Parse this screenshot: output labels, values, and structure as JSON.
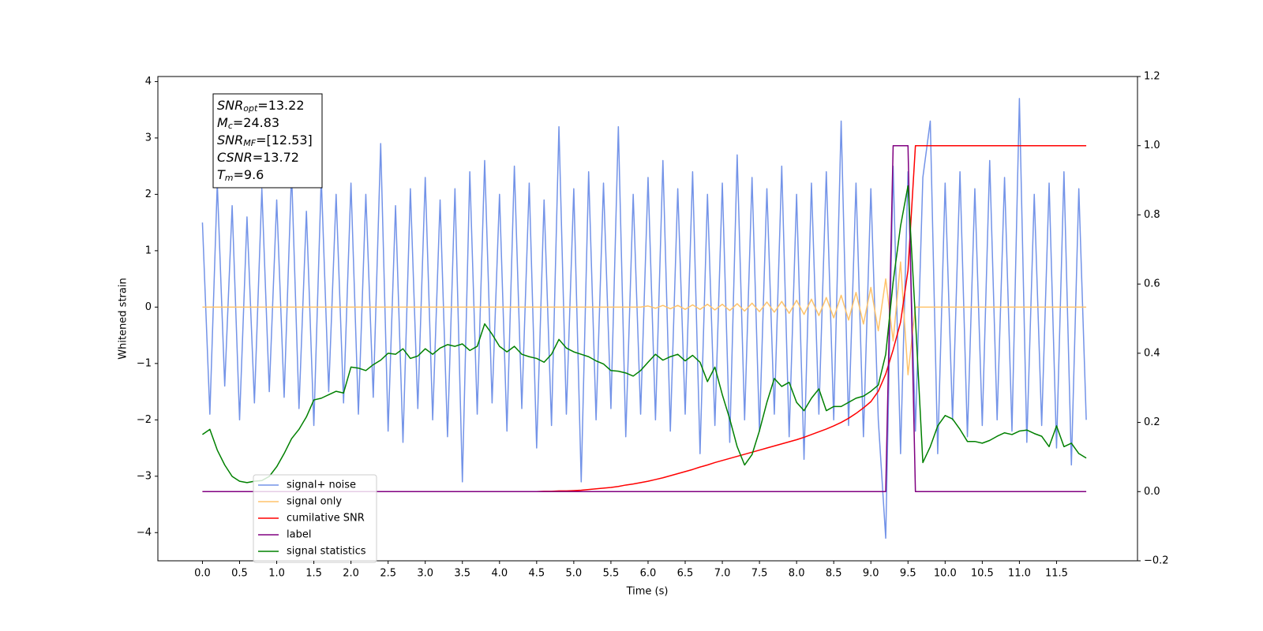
{
  "chart_data": {
    "type": "line",
    "xlabel": "Time (s)",
    "ylabel": "Whitened strain",
    "xlim": [
      -0.6,
      12.59
    ],
    "ylim": [
      -4.5,
      4.09
    ],
    "y2lim": [
      -0.2,
      1.2
    ],
    "xticks": [
      {
        "value": 0,
        "label": "0.0"
      },
      0.5,
      {
        "value": 1,
        "label": "1.0"
      },
      1.5,
      {
        "value": 2,
        "label": "2.0"
      },
      2.5,
      {
        "value": 3,
        "label": "3.0"
      },
      3.5,
      {
        "value": 4,
        "label": "4.0"
      },
      4.5,
      {
        "value": 5,
        "label": "5.0"
      },
      5.5,
      {
        "value": 6,
        "label": "6.0"
      },
      6.5,
      {
        "value": 7,
        "label": "7.0"
      },
      7.5,
      {
        "value": 8,
        "label": "8.0"
      },
      8.5,
      {
        "value": 9,
        "label": "9.0"
      },
      9.5,
      {
        "value": 10,
        "label": "10.0"
      },
      10.5,
      {
        "value": 11,
        "label": "11.0"
      },
      11.5
    ],
    "yticks": [
      {
        "value": -4,
        "label": "−4"
      },
      {
        "value": -3,
        "label": "−3"
      },
      {
        "value": -2,
        "label": "−2"
      },
      {
        "value": -1,
        "label": "−1"
      },
      0,
      1,
      2,
      3,
      4
    ],
    "y2ticks": [
      {
        "value": -0.2,
        "label": "−0.2"
      },
      {
        "value": 0,
        "label": "0.0"
      },
      0.2,
      0.4,
      0.6,
      0.8,
      {
        "value": 1,
        "label": "1.0"
      },
      1.2
    ],
    "legend_loc": "lower left",
    "annotation": [
      {
        "symbol": "SNR",
        "subscript": "opt",
        "text": "=13.22"
      },
      {
        "symbol": "M",
        "subscript": "c",
        "text": "=24.83"
      },
      {
        "symbol": "SNR",
        "subscript": "MF",
        "text": "=[12.53]"
      },
      {
        "symbol": "CSNR",
        "text": "=13.72"
      },
      {
        "symbol": "T",
        "subscript": "m",
        "text": "=9.6"
      }
    ],
    "x": [
      0,
      0.1,
      0.2,
      0.3,
      0.4,
      0.5,
      0.6,
      0.7,
      0.8,
      0.9,
      1,
      1.1,
      1.2,
      1.3,
      1.4,
      1.5,
      1.6,
      1.7,
      1.8,
      1.9,
      2,
      2.1,
      2.2,
      2.3,
      2.4,
      2.5,
      2.6,
      2.7,
      2.8,
      2.9,
      3,
      3.1,
      3.2,
      3.3,
      3.4,
      3.5,
      3.6,
      3.7,
      3.8,
      3.9,
      4,
      4.1,
      4.2,
      4.3,
      4.4,
      4.5,
      4.6,
      4.7,
      4.8,
      4.9,
      5,
      5.1,
      5.2,
      5.3,
      5.4,
      5.5,
      5.6,
      5.7,
      5.8,
      5.9,
      6,
      6.1,
      6.2,
      6.3,
      6.4,
      6.5,
      6.6,
      6.7,
      6.8,
      6.9,
      7,
      7.1,
      7.2,
      7.3,
      7.4,
      7.5,
      7.6,
      7.7,
      7.8,
      7.9,
      8,
      8.1,
      8.2,
      8.3,
      8.4,
      8.5,
      8.6,
      8.7,
      8.8,
      8.9,
      9,
      9.1,
      9.2,
      9.3,
      9.4,
      9.5,
      9.6,
      9.7,
      9.8,
      9.9,
      10,
      10.1,
      10.2,
      10.3,
      10.4,
      10.5,
      10.6,
      10.7,
      10.8,
      10.9,
      11,
      11.1,
      11.2,
      11.3,
      11.4,
      11.5,
      11.6,
      11.7,
      11.8,
      11.9
    ],
    "series": [
      {
        "name": "signal+ noise",
        "color": "#7393e8",
        "values": [
          1.5,
          -1.9,
          2.2,
          -1.4,
          1.8,
          -2.0,
          1.6,
          -1.7,
          2.1,
          -1.5,
          1.9,
          -1.6,
          2.4,
          -1.8,
          1.7,
          -2.1,
          2.3,
          -1.5,
          2.0,
          -1.7,
          2.2,
          -1.9,
          2.0,
          -1.6,
          2.9,
          -2.2,
          1.8,
          -2.4,
          2.1,
          -1.8,
          2.3,
          -2.0,
          1.9,
          -2.3,
          2.1,
          -3.1,
          2.4,
          -1.9,
          2.6,
          -1.7,
          2.0,
          -2.2,
          2.5,
          -1.8,
          2.2,
          -2.5,
          1.9,
          -2.1,
          3.2,
          -1.9,
          2.1,
          -3.1,
          2.4,
          -2.0,
          2.2,
          -1.8,
          3.2,
          -2.3,
          2.0,
          -1.9,
          2.3,
          -2.0,
          2.6,
          -2.2,
          2.1,
          -1.9,
          2.4,
          -2.6,
          2.0,
          -2.1,
          2.2,
          -2.4,
          2.7,
          -2.0,
          2.3,
          -2.2,
          2.1,
          -1.9,
          2.5,
          -2.3,
          2.0,
          -2.7,
          2.2,
          -1.9,
          2.4,
          -2.0,
          3.3,
          -2.1,
          2.2,
          -2.3,
          2.1,
          -2.0,
          -4.1,
          2.5,
          -2.6,
          2.4,
          -2.2,
          2.3,
          3.3,
          -2.6,
          2.2,
          -2.0,
          2.4,
          -2.3,
          2.1,
          -2.1,
          2.6,
          -2.0,
          2.3,
          -2.2,
          3.7,
          -2.4,
          2.0,
          -2.1,
          2.2,
          -2.5,
          2.4,
          -2.8,
          2.1,
          -2.0
        ]
      },
      {
        "name": "signal only",
        "color": "#ffc36b",
        "values": [
          0,
          0,
          0,
          0,
          0,
          0,
          0,
          0,
          0,
          0,
          0,
          0,
          0,
          0,
          0,
          0,
          0,
          0,
          0,
          0,
          0,
          0,
          0,
          0,
          0,
          0,
          0,
          0,
          0,
          0,
          0,
          0,
          0,
          0,
          0,
          0,
          0,
          0,
          0,
          0,
          0,
          0,
          0,
          0,
          0,
          0,
          0,
          0,
          0,
          0,
          0,
          0,
          0,
          0,
          0,
          0,
          0,
          0,
          0,
          0,
          0.02,
          -0.02,
          0.03,
          -0.03,
          0.03,
          -0.04,
          0.04,
          -0.04,
          0.05,
          -0.05,
          0.05,
          -0.06,
          0.06,
          -0.07,
          0.07,
          -0.08,
          0.09,
          -0.09,
          0.1,
          -0.11,
          0.12,
          -0.13,
          0.14,
          -0.15,
          0.17,
          -0.19,
          0.21,
          -0.23,
          0.26,
          -0.3,
          0.35,
          -0.42,
          0.5,
          -0.6,
          0.8,
          -1.2,
          0,
          0,
          0,
          0,
          0,
          0,
          0,
          0,
          0,
          0,
          0,
          0,
          0,
          0,
          0,
          0,
          0,
          0,
          0,
          0,
          0,
          0,
          0,
          0
        ]
      },
      {
        "name": "cumilative SNR",
        "color": "#ff0000",
        "axis": "y2",
        "values": [
          0,
          0,
          0,
          0,
          0,
          0,
          0,
          0,
          0,
          0,
          0,
          0,
          0,
          0,
          0,
          0,
          0,
          0,
          0,
          0,
          0,
          0,
          0,
          0,
          0,
          0,
          0,
          0,
          0,
          0,
          0,
          0,
          0,
          0,
          0,
          0,
          0,
          0,
          0,
          0,
          0,
          0,
          0,
          0,
          0,
          0,
          0.001,
          0.001,
          0.002,
          0.002,
          0.003,
          0.004,
          0.006,
          0.008,
          0.01,
          0.012,
          0.015,
          0.019,
          0.022,
          0.026,
          0.03,
          0.035,
          0.04,
          0.046,
          0.052,
          0.058,
          0.064,
          0.071,
          0.077,
          0.084,
          0.09,
          0.096,
          0.102,
          0.108,
          0.114,
          0.12,
          0.126,
          0.132,
          0.138,
          0.144,
          0.15,
          0.157,
          0.165,
          0.173,
          0.181,
          0.19,
          0.2,
          0.212,
          0.226,
          0.242,
          0.26,
          0.29,
          0.34,
          0.41,
          0.49,
          0.64,
          1,
          1,
          1,
          1,
          1,
          1,
          1,
          1,
          1,
          1,
          1,
          1,
          1,
          1,
          1,
          1,
          1,
          1,
          1,
          1,
          1,
          1,
          1,
          1
        ]
      },
      {
        "name": "label",
        "color": "#800080",
        "axis": "y2",
        "values": [
          0,
          0,
          0,
          0,
          0,
          0,
          0,
          0,
          0,
          0,
          0,
          0,
          0,
          0,
          0,
          0,
          0,
          0,
          0,
          0,
          0,
          0,
          0,
          0,
          0,
          0,
          0,
          0,
          0,
          0,
          0,
          0,
          0,
          0,
          0,
          0,
          0,
          0,
          0,
          0,
          0,
          0,
          0,
          0,
          0,
          0,
          0,
          0,
          0,
          0,
          0,
          0,
          0,
          0,
          0,
          0,
          0,
          0,
          0,
          0,
          0,
          0,
          0,
          0,
          0,
          0,
          0,
          0,
          0,
          0,
          0,
          0,
          0,
          0,
          0,
          0,
          0,
          0,
          0,
          0,
          0,
          0,
          0,
          0,
          0,
          0,
          0,
          0,
          0,
          0,
          0,
          0,
          0,
          1,
          1,
          1,
          0,
          0,
          0,
          0,
          0,
          0,
          0,
          0,
          0,
          0,
          0,
          0,
          0,
          0,
          0,
          0,
          0,
          0,
          0,
          0,
          0,
          0,
          0,
          0
        ]
      },
      {
        "name": "signal statistics",
        "color": "#008000",
        "axis": "y2",
        "values": [
          0.165,
          0.18,
          0.12,
          0.077,
          0.044,
          0.03,
          0.026,
          0.03,
          0.032,
          0.044,
          0.072,
          0.11,
          0.153,
          0.18,
          0.216,
          0.265,
          0.27,
          0.28,
          0.29,
          0.285,
          0.36,
          0.357,
          0.35,
          0.367,
          0.38,
          0.4,
          0.397,
          0.413,
          0.385,
          0.392,
          0.413,
          0.397,
          0.415,
          0.425,
          0.42,
          0.427,
          0.408,
          0.42,
          0.485,
          0.455,
          0.42,
          0.404,
          0.42,
          0.397,
          0.39,
          0.385,
          0.374,
          0.397,
          0.44,
          0.415,
          0.404,
          0.397,
          0.39,
          0.378,
          0.369,
          0.35,
          0.348,
          0.343,
          0.334,
          0.35,
          0.374,
          0.397,
          0.38,
          0.39,
          0.397,
          0.378,
          0.394,
          0.374,
          0.318,
          0.36,
          0.28,
          0.21,
          0.13,
          0.077,
          0.107,
          0.176,
          0.258,
          0.327,
          0.304,
          0.316,
          0.258,
          0.234,
          0.27,
          0.297,
          0.234,
          0.246,
          0.246,
          0.258,
          0.27,
          0.276,
          0.29,
          0.308,
          0.397,
          0.606,
          0.768,
          0.884,
          0.5,
          0.084,
          0.13,
          0.19,
          0.22,
          0.21,
          0.18,
          0.145,
          0.145,
          0.14,
          0.148,
          0.16,
          0.17,
          0.165,
          0.175,
          0.178,
          0.168,
          0.16,
          0.13,
          0.19,
          0.13,
          0.14,
          0.11,
          0.097
        ]
      }
    ]
  }
}
